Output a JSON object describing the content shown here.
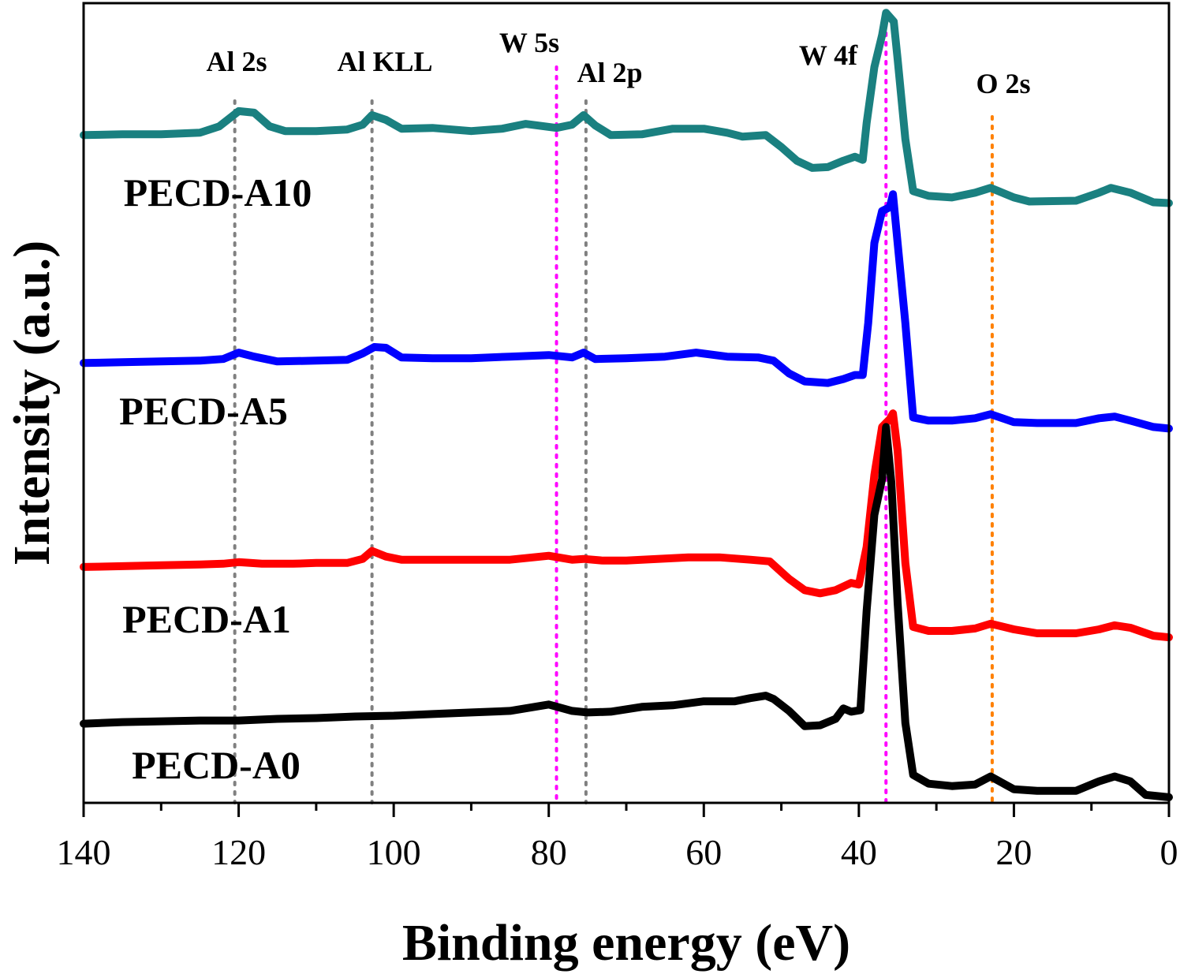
{
  "chart_data": {
    "type": "line",
    "title": "",
    "xlabel": "Binding energy (eV)",
    "ylabel": "Intensity (a.u.)",
    "xlim": [
      140,
      0
    ],
    "x_reversed": true,
    "y_units": "arbitrary, stacked offsets",
    "ylim": [
      0,
      100
    ],
    "x_ticks": [
      140,
      120,
      100,
      80,
      60,
      40,
      20,
      0
    ],
    "x_tick_labels": [
      "140",
      "120",
      "100",
      "80",
      "60",
      "40",
      "20",
      "0"
    ],
    "grid": false,
    "legend": "none",
    "reference_lines": [
      {
        "label": "Al 2s",
        "x": 120.5,
        "color": "#808080"
      },
      {
        "label": "Al KLL",
        "x": 102.8,
        "color": "#808080"
      },
      {
        "label": "W 5s",
        "x": 79.0,
        "color": "#ff00ff"
      },
      {
        "label": "Al 2p",
        "x": 75.2,
        "color": "#808080"
      },
      {
        "label": "W 4f",
        "x": 36.5,
        "color": "#ff00ff"
      },
      {
        "label": "O 2s",
        "x": 22.8,
        "color": "#ff8000"
      }
    ],
    "series": [
      {
        "name": "PECD-A10",
        "color": "#1a8080",
        "points": [
          [
            140,
            83.5
          ],
          [
            135,
            83.6
          ],
          [
            130,
            83.6
          ],
          [
            125,
            83.8
          ],
          [
            122.5,
            84.6
          ],
          [
            120,
            86.5
          ],
          [
            118,
            86.3
          ],
          [
            116,
            84.6
          ],
          [
            114,
            84.0
          ],
          [
            110,
            84.0
          ],
          [
            106,
            84.2
          ],
          [
            104,
            84.8
          ],
          [
            102.8,
            86.0
          ],
          [
            101,
            85.4
          ],
          [
            99,
            84.3
          ],
          [
            95,
            84.4
          ],
          [
            90,
            84.0
          ],
          [
            86,
            84.3
          ],
          [
            83,
            84.9
          ],
          [
            79,
            84.4
          ],
          [
            77,
            84.8
          ],
          [
            75.5,
            86.0
          ],
          [
            74,
            84.7
          ],
          [
            72,
            83.5
          ],
          [
            68,
            83.6
          ],
          [
            64,
            84.3
          ],
          [
            60,
            84.3
          ],
          [
            57,
            83.8
          ],
          [
            55,
            83.3
          ],
          [
            52,
            83.5
          ],
          [
            50,
            82.0
          ],
          [
            48,
            80.3
          ],
          [
            46,
            79.4
          ],
          [
            44,
            79.5
          ],
          [
            42,
            80.3
          ],
          [
            40.5,
            80.8
          ],
          [
            39.5,
            80.4
          ],
          [
            39,
            85.0
          ],
          [
            38,
            92.0
          ],
          [
            37,
            96.0
          ],
          [
            36.5,
            98.8
          ],
          [
            35.5,
            97.7
          ],
          [
            35,
            93.0
          ],
          [
            34,
            83.0
          ],
          [
            33,
            76.5
          ],
          [
            31,
            75.9
          ],
          [
            28,
            75.7
          ],
          [
            25,
            76.3
          ],
          [
            23,
            76.9
          ],
          [
            20,
            75.7
          ],
          [
            18,
            75.2
          ],
          [
            12,
            75.3
          ],
          [
            9,
            76.3
          ],
          [
            7.5,
            76.9
          ],
          [
            5,
            76.3
          ],
          [
            2,
            75.1
          ],
          [
            0,
            75.0
          ]
        ]
      },
      {
        "name": "PECD-A5",
        "color": "#0000ff",
        "points": [
          [
            140,
            55.0
          ],
          [
            135,
            55.1
          ],
          [
            130,
            55.2
          ],
          [
            125,
            55.3
          ],
          [
            122,
            55.5
          ],
          [
            120,
            56.3
          ],
          [
            118,
            55.8
          ],
          [
            115,
            55.2
          ],
          [
            110,
            55.3
          ],
          [
            106,
            55.4
          ],
          [
            104,
            56.2
          ],
          [
            102.5,
            57.0
          ],
          [
            101,
            56.9
          ],
          [
            99,
            55.7
          ],
          [
            95,
            55.6
          ],
          [
            90,
            55.6
          ],
          [
            85,
            55.8
          ],
          [
            80,
            56.0
          ],
          [
            77,
            55.7
          ],
          [
            75.5,
            56.3
          ],
          [
            74,
            55.5
          ],
          [
            70,
            55.6
          ],
          [
            65,
            55.8
          ],
          [
            61,
            56.3
          ],
          [
            57,
            55.8
          ],
          [
            53,
            55.7
          ],
          [
            51,
            55.3
          ],
          [
            49,
            53.7
          ],
          [
            47,
            52.7
          ],
          [
            44,
            52.5
          ],
          [
            42,
            53.0
          ],
          [
            40.5,
            53.5
          ],
          [
            39.5,
            53.5
          ],
          [
            38.8,
            60.0
          ],
          [
            38,
            70.0
          ],
          [
            37,
            74.0
          ],
          [
            36,
            74.5
          ],
          [
            35.6,
            76.1
          ],
          [
            35,
            70.0
          ],
          [
            34,
            60.0
          ],
          [
            33,
            48.2
          ],
          [
            31,
            47.8
          ],
          [
            28,
            47.8
          ],
          [
            25,
            48.1
          ],
          [
            23,
            48.6
          ],
          [
            20,
            47.6
          ],
          [
            17,
            47.5
          ],
          [
            12,
            47.5
          ],
          [
            9,
            48.1
          ],
          [
            7,
            48.3
          ],
          [
            5,
            47.8
          ],
          [
            2,
            47.0
          ],
          [
            0,
            46.8
          ]
        ]
      },
      {
        "name": "PECD-A1",
        "color": "#ff0000",
        "points": [
          [
            140,
            29.5
          ],
          [
            135,
            29.6
          ],
          [
            130,
            29.7
          ],
          [
            125,
            29.8
          ],
          [
            122,
            29.9
          ],
          [
            120,
            30.1
          ],
          [
            117,
            29.9
          ],
          [
            113,
            29.9
          ],
          [
            110,
            30.0
          ],
          [
            106,
            30.0
          ],
          [
            104,
            30.5
          ],
          [
            102.8,
            31.5
          ],
          [
            101,
            30.8
          ],
          [
            99,
            30.4
          ],
          [
            95,
            30.4
          ],
          [
            90,
            30.4
          ],
          [
            85,
            30.4
          ],
          [
            80,
            30.9
          ],
          [
            77,
            30.4
          ],
          [
            75.5,
            30.5
          ],
          [
            73,
            30.3
          ],
          [
            70,
            30.3
          ],
          [
            66,
            30.5
          ],
          [
            62,
            30.7
          ],
          [
            58,
            30.7
          ],
          [
            54,
            30.4
          ],
          [
            51.5,
            30.2
          ],
          [
            49,
            28.0
          ],
          [
            47,
            26.6
          ],
          [
            45,
            26.2
          ],
          [
            43,
            26.6
          ],
          [
            41,
            27.5
          ],
          [
            40,
            27.3
          ],
          [
            39,
            32.0
          ],
          [
            38,
            41.0
          ],
          [
            37,
            47.0
          ],
          [
            36,
            48.0
          ],
          [
            35.6,
            48.7
          ],
          [
            35,
            44.0
          ],
          [
            34,
            30.0
          ],
          [
            33,
            22.0
          ],
          [
            31,
            21.5
          ],
          [
            28,
            21.5
          ],
          [
            25,
            21.8
          ],
          [
            23,
            22.4
          ],
          [
            20,
            21.7
          ],
          [
            17,
            21.2
          ],
          [
            12,
            21.2
          ],
          [
            9,
            21.7
          ],
          [
            7,
            22.2
          ],
          [
            5,
            21.9
          ],
          [
            2,
            20.9
          ],
          [
            0,
            20.7
          ]
        ]
      },
      {
        "name": "PECD-A0",
        "color": "#000000",
        "points": [
          [
            140,
            9.9
          ],
          [
            135,
            10.1
          ],
          [
            130,
            10.2
          ],
          [
            125,
            10.3
          ],
          [
            120,
            10.3
          ],
          [
            115,
            10.5
          ],
          [
            110,
            10.6
          ],
          [
            105,
            10.8
          ],
          [
            100,
            10.9
          ],
          [
            95,
            11.1
          ],
          [
            90,
            11.3
          ],
          [
            85,
            11.5
          ],
          [
            80,
            12.3
          ],
          [
            77,
            11.5
          ],
          [
            75,
            11.3
          ],
          [
            72,
            11.4
          ],
          [
            68,
            12.0
          ],
          [
            64,
            12.2
          ],
          [
            60,
            12.7
          ],
          [
            56,
            12.7
          ],
          [
            54,
            13.1
          ],
          [
            52,
            13.4
          ],
          [
            51,
            13.0
          ],
          [
            49,
            11.5
          ],
          [
            47,
            9.6
          ],
          [
            45,
            9.7
          ],
          [
            43,
            10.5
          ],
          [
            42,
            11.8
          ],
          [
            41,
            11.4
          ],
          [
            39.8,
            11.6
          ],
          [
            39,
            24.0
          ],
          [
            38,
            36.0
          ],
          [
            37,
            40.5
          ],
          [
            36.5,
            47.0
          ],
          [
            35.8,
            40.0
          ],
          [
            35,
            25.0
          ],
          [
            34,
            10.0
          ],
          [
            33,
            3.5
          ],
          [
            31,
            2.4
          ],
          [
            28,
            2.1
          ],
          [
            25,
            2.3
          ],
          [
            23,
            3.3
          ],
          [
            20,
            1.7
          ],
          [
            17,
            1.5
          ],
          [
            12,
            1.5
          ],
          [
            9,
            2.7
          ],
          [
            7,
            3.3
          ],
          [
            5,
            2.7
          ],
          [
            3,
            1.0
          ],
          [
            0,
            0.7
          ]
        ]
      }
    ]
  }
}
